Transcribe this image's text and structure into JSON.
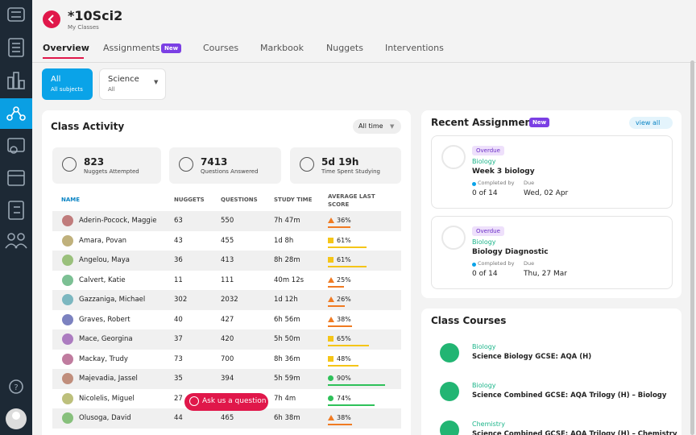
{
  "header": {
    "title": "*10Sci2",
    "subtitle": "My Classes"
  },
  "tabs": [
    {
      "label": "Overview"
    },
    {
      "label": "Assignments",
      "badge": "New"
    },
    {
      "label": "Courses"
    },
    {
      "label": "Markbook"
    },
    {
      "label": "Nuggets"
    },
    {
      "label": "Interventions"
    }
  ],
  "filters": [
    {
      "label": "All",
      "sub": "All subjects"
    },
    {
      "label": "Science",
      "sub": "All"
    }
  ],
  "class_activity": {
    "title": "Class Activity",
    "period": "All time",
    "stats": [
      {
        "value": 823,
        "label": "Nuggets Attempted"
      },
      {
        "value": 7413,
        "label": "Questions Answered"
      },
      {
        "value": "5d 19h",
        "label": "Time Spent Studying"
      }
    ],
    "columns": [
      "NAME",
      "NUGGETS",
      "QUESTIONS",
      "STUDY TIME",
      "AVERAGE LAST SCORE"
    ],
    "rows": [
      {
        "name": "Aderin-Pocock, Maggie",
        "nuggets": 63,
        "questions": 550,
        "study_time": "7h 47m",
        "score": 36,
        "score_label": "36%"
      },
      {
        "name": "Amara, Povan",
        "nuggets": 43,
        "questions": 455,
        "study_time": "1d 8h",
        "score": 61,
        "score_label": "61%"
      },
      {
        "name": "Angelou, Maya",
        "nuggets": 36,
        "questions": 413,
        "study_time": "8h 28m",
        "score": 61,
        "score_label": "61%"
      },
      {
        "name": "Calvert, Katie",
        "nuggets": 11,
        "questions": 111,
        "study_time": "40m 12s",
        "score": 25,
        "score_label": "25%"
      },
      {
        "name": "Gazzaniga, Michael",
        "nuggets": 302,
        "questions": 2032,
        "study_time": "1d 12h",
        "score": 26,
        "score_label": "26%"
      },
      {
        "name": "Graves, Robert",
        "nuggets": 40,
        "questions": 427,
        "study_time": "6h 56m",
        "score": 38,
        "score_label": "38%"
      },
      {
        "name": "Mace, Georgina",
        "nuggets": 37,
        "questions": 420,
        "study_time": "5h 50m",
        "score": 65,
        "score_label": "65%"
      },
      {
        "name": "Mackay, Trudy",
        "nuggets": 73,
        "questions": 700,
        "study_time": "8h 36m",
        "score": 48,
        "score_label": "48%"
      },
      {
        "name": "Majevadia, Jassel",
        "nuggets": 35,
        "questions": 394,
        "study_time": "5h 59m",
        "score": 90,
        "score_label": "90%"
      },
      {
        "name": "Nicolelis, Miguel",
        "nuggets": 27,
        "study_time": "7h 4m",
        "score": 74,
        "score_label": "74%"
      },
      {
        "name": "Olusoga, David",
        "nuggets": 44,
        "questions": 465,
        "study_time": "6h 38m",
        "score": 38,
        "score_label": "38%"
      }
    ]
  },
  "recent_assignments": {
    "title": "Recent Assignments",
    "badge": "New",
    "view_all": "view all",
    "items": [
      {
        "status": "Overdue",
        "subject": "Biology",
        "name": "Week 3 biology",
        "completed_label": "Completed by",
        "due_label": "Due",
        "completed": "0 of 14",
        "due": "Wed, 02 Apr"
      },
      {
        "status": "Overdue",
        "subject": "Biology",
        "name": "Biology Diagnostic",
        "completed_label": "Completed by",
        "due_label": "Due",
        "completed": "0 of 14",
        "due": "Thu, 27 Mar"
      }
    ]
  },
  "class_courses": {
    "title": "Class Courses",
    "items": [
      {
        "subject": "Biology",
        "name": "Science Biology GCSE: AQA (H)"
      },
      {
        "subject": "Biology",
        "name": "Science Combined GCSE: AQA Trilogy (H) – Biology"
      },
      {
        "subject": "Chemistry",
        "name": "Science Combined GCSE: AQA Trilogy (H) – Chemistry"
      }
    ]
  },
  "help_button": "Ask us a question"
}
